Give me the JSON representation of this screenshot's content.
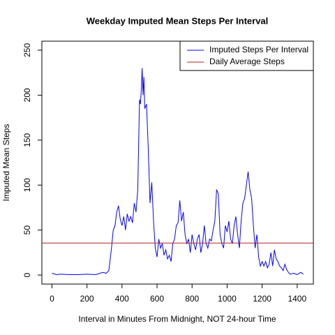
{
  "chart_data": {
    "type": "line",
    "title": "Weekday Imputed Mean Steps Per Interval",
    "x_label": "Interval in Minutes From Midnight, NOT 24-hour Time",
    "y_label": "Imputed Mean Steps",
    "x": [
      0,
      25,
      50,
      100,
      150,
      200,
      250,
      290,
      310,
      325,
      340,
      350,
      360,
      370,
      380,
      390,
      400,
      410,
      420,
      430,
      440,
      450,
      460,
      470,
      480,
      490,
      500,
      505,
      510,
      515,
      520,
      525,
      530,
      540,
      550,
      560,
      570,
      580,
      590,
      600,
      610,
      620,
      630,
      640,
      650,
      660,
      670,
      680,
      690,
      700,
      710,
      720,
      730,
      740,
      750,
      760,
      770,
      780,
      790,
      800,
      810,
      820,
      830,
      840,
      850,
      860,
      870,
      880,
      890,
      900,
      910,
      920,
      930,
      940,
      950,
      960,
      970,
      980,
      990,
      1000,
      1010,
      1020,
      1030,
      1040,
      1050,
      1060,
      1070,
      1080,
      1090,
      1100,
      1110,
      1120,
      1130,
      1140,
      1150,
      1160,
      1170,
      1180,
      1190,
      1200,
      1210,
      1220,
      1230,
      1240,
      1250,
      1260,
      1270,
      1280,
      1290,
      1300,
      1310,
      1320,
      1330,
      1340,
      1350,
      1360,
      1380,
      1400,
      1420,
      1435
    ],
    "series": [
      {
        "name": "Imputed Steps Per Interval",
        "color": "#0000ff",
        "values": [
          2,
          0.5,
          1,
          0.5,
          0.5,
          1,
          0.5,
          3,
          2,
          5,
          30,
          50,
          55,
          70,
          77,
          62,
          55,
          65,
          50,
          68,
          60,
          65,
          58,
          80,
          70,
          95,
          195,
          190,
          205,
          230,
          200,
          220,
          185,
          190,
          140,
          80,
          103,
          60,
          30,
          20,
          40,
          30,
          35,
          22,
          28,
          18,
          22,
          15,
          35,
          40,
          55,
          58,
          83,
          60,
          70,
          45,
          35,
          40,
          25,
          45,
          35,
          28,
          40,
          45,
          25,
          35,
          55,
          35,
          30,
          40,
          38,
          50,
          60,
          95,
          90,
          45,
          35,
          30,
          55,
          48,
          60,
          40,
          35,
          55,
          65,
          45,
          30,
          60,
          80,
          85,
          100,
          115,
          95,
          85,
          55,
          30,
          45,
          20,
          10,
          15,
          10,
          15,
          8,
          12,
          25,
          10,
          28,
          18,
          15,
          10,
          8,
          5,
          12,
          6,
          3,
          1,
          2,
          0.5,
          3,
          1
        ]
      }
    ],
    "hlines": [
      {
        "name": "Daily Average Steps",
        "color": "#b22222",
        "value": 35.6
      }
    ],
    "xlim": [
      -57.4,
      1492.4
    ],
    "ylim": [
      -10,
      260
    ],
    "xticks": [
      0,
      200,
      400,
      600,
      800,
      1000,
      1200,
      1400
    ],
    "yticks": [
      0,
      50,
      100,
      150,
      200,
      250
    ],
    "legend": "top-right"
  }
}
